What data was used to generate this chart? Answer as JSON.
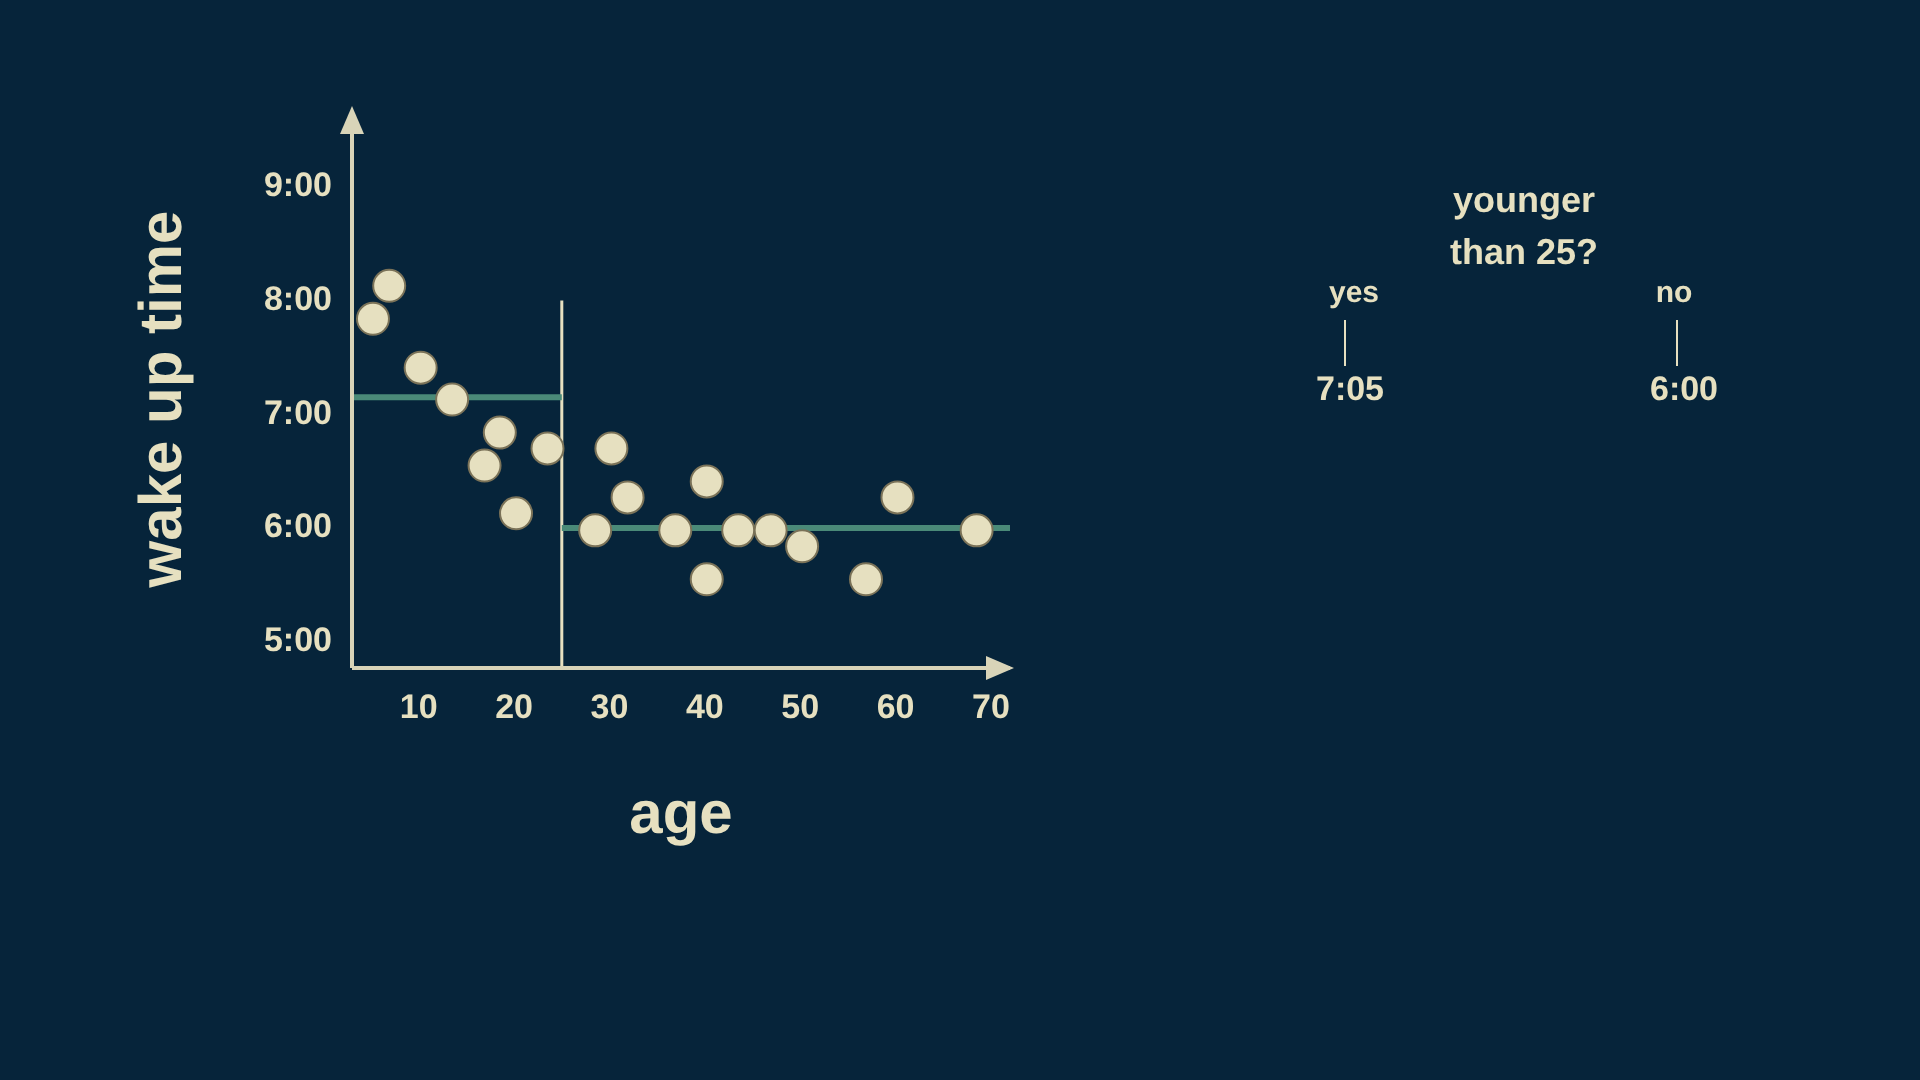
{
  "chart_data": {
    "type": "scatter",
    "xlabel": "age",
    "ylabel": "wake up time",
    "xlim": [
      3,
      72
    ],
    "ylim": [
      4.77,
      9.5
    ],
    "xticks": [
      10,
      20,
      30,
      40,
      50,
      60,
      70
    ],
    "yticks": [
      {
        "value": 5,
        "label": "5:00"
      },
      {
        "value": 6,
        "label": "6:00"
      },
      {
        "value": 7,
        "label": "7:00"
      },
      {
        "value": 8,
        "label": "8:00"
      },
      {
        "value": 9,
        "label": "9:00"
      }
    ],
    "grid": false,
    "legend": false,
    "series": [
      {
        "color": "#e6e0c0",
        "marker": "circle",
        "x": [
          5.2,
          6.9,
          10.2,
          13.5,
          16.9,
          18.5,
          20.2,
          23.5,
          28.5,
          30.2,
          31.9,
          36.9,
          40.2,
          40.2,
          43.5,
          46.9,
          50.2,
          56.9,
          60.2,
          68.5
        ],
        "values": [
          7.84,
          8.13,
          7.41,
          7.13,
          6.55,
          6.84,
          6.13,
          6.7,
          5.98,
          6.7,
          6.27,
          5.98,
          6.41,
          5.55,
          5.98,
          5.98,
          5.84,
          5.55,
          6.27,
          5.98
        ]
      },
      {
        "type": "line",
        "marker": "none",
        "color": "#4a8a78",
        "x": [
          3,
          25
        ],
        "values": [
          7.15,
          7.15
        ]
      },
      {
        "type": "line",
        "marker": "none",
        "color": "#4a8a78",
        "x": [
          25,
          72
        ],
        "values": [
          6.0,
          6.0
        ]
      },
      {
        "type": "line",
        "marker": "none",
        "color": "#e6e0c0",
        "x": [
          25,
          25
        ],
        "values": [
          4.77,
          8.0
        ]
      }
    ],
    "annotations": [
      "younger than 25?",
      "yes",
      "no",
      "7:05",
      "6:00"
    ]
  }
}
